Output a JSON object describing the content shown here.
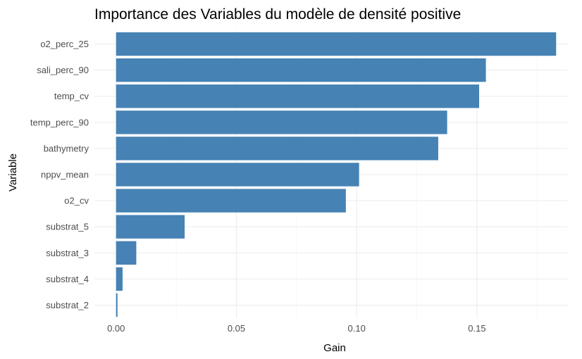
{
  "chart_data": {
    "type": "bar",
    "orientation": "horizontal",
    "title": "Importance des Variables du modèle de densité positive",
    "xlabel": "Gain",
    "ylabel": "Variable",
    "categories": [
      "o2_perc_25",
      "sali_perc_90",
      "temp_cv",
      "temp_perc_90",
      "bathymetry",
      "nppv_mean",
      "o2_cv",
      "substrat_5",
      "substrat_3",
      "substrat_4",
      "substrat_2"
    ],
    "values": [
      0.1829,
      0.1537,
      0.1509,
      0.1376,
      0.1339,
      0.101,
      0.0955,
      0.0285,
      0.0084,
      0.0027,
      0.0006
    ],
    "xlim": [
      -0.009,
      0.1875
    ],
    "xticks": [
      0.0,
      0.05,
      0.1,
      0.15
    ],
    "xtick_labels": [
      "0.00",
      "0.05",
      "0.10",
      "0.15"
    ],
    "bar_color": "#4682B4",
    "grid": true,
    "legend": "none"
  }
}
